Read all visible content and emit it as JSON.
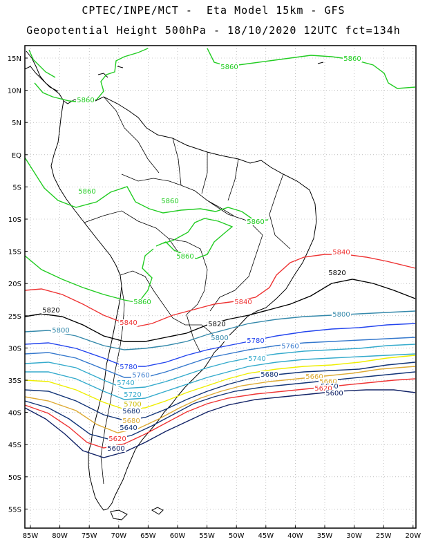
{
  "header": {
    "line1": "CPTEC/INPE/MCT -  Eta Model 15km - GFS",
    "line2": "Geopotential Height 500hPa - 18/10/2020 12UTC fct=134h"
  },
  "axes": {
    "lat_labels": [
      "15N",
      "10N",
      "5N",
      "EQ",
      "5S",
      "10S",
      "15S",
      "20S",
      "25S",
      "30S",
      "35S",
      "40S",
      "45S",
      "50S",
      "55S"
    ],
    "lon_labels": [
      "85W",
      "80W",
      "75W",
      "70W",
      "65W",
      "60W",
      "55W",
      "50W",
      "45W",
      "40W",
      "35W",
      "30W",
      "25W",
      "20W"
    ]
  },
  "colors": {
    "c5860": "#22cc22",
    "c5840": "#ee3333",
    "c5820": "#000000",
    "c5800": "#3388aa",
    "c5780": "#2244ee",
    "c5760": "#3377cc",
    "c5740": "#33aacc",
    "c5720": "#33aacc",
    "c5700": "#eeee00",
    "c5680": "#ddaa33",
    "c5640": "#113377",
    "c5620": "#ee3333",
    "c5600": "#112266",
    "grid": "#999999",
    "coast": "#000000"
  },
  "contour_labels": [
    {
      "text": "5860",
      "color": "#22cc22"
    },
    {
      "text": "5860",
      "color": "#22cc22"
    },
    {
      "text": "5860",
      "color": "#22cc22"
    },
    {
      "text": "5860",
      "color": "#22cc22"
    },
    {
      "text": "5860",
      "color": "#22cc22"
    },
    {
      "text": "5860",
      "color": "#22cc22"
    },
    {
      "text": "5860",
      "color": "#22cc22"
    },
    {
      "text": "5860",
      "color": "#22cc22"
    },
    {
      "text": "5840",
      "color": "#ee3333"
    },
    {
      "text": "5840",
      "color": "#ee3333"
    },
    {
      "text": "5840",
      "color": "#ee3333"
    },
    {
      "text": "5820",
      "color": "#000000"
    },
    {
      "text": "5820",
      "color": "#000000"
    },
    {
      "text": "5820",
      "color": "#000000"
    },
    {
      "text": "5800",
      "color": "#3388aa"
    },
    {
      "text": "5800",
      "color": "#3388aa"
    },
    {
      "text": "5800",
      "color": "#3388aa"
    },
    {
      "text": "5780",
      "color": "#2244ee"
    },
    {
      "text": "5780",
      "color": "#2244ee"
    },
    {
      "text": "5760",
      "color": "#3377cc"
    },
    {
      "text": "5760",
      "color": "#3377cc"
    },
    {
      "text": "5740",
      "color": "#33aacc"
    },
    {
      "text": "5740",
      "color": "#33aacc"
    },
    {
      "text": "5720",
      "color": "#33aacc"
    },
    {
      "text": "5700",
      "color": "#ccbb00"
    },
    {
      "text": "5680",
      "color": "#113377"
    },
    {
      "text": "5680",
      "color": "#113377"
    },
    {
      "text": "5680",
      "color": "#ddaa33"
    },
    {
      "text": "5660",
      "color": "#ddaa33"
    },
    {
      "text": "5660",
      "color": "#ddaa33"
    },
    {
      "text": "5640",
      "color": "#113377"
    },
    {
      "text": "5640",
      "color": "#113377"
    },
    {
      "text": "5620",
      "color": "#ee3333"
    },
    {
      "text": "5620",
      "color": "#ee3333"
    },
    {
      "text": "5600",
      "color": "#112266"
    },
    {
      "text": "5600",
      "color": "#112266"
    }
  ]
}
